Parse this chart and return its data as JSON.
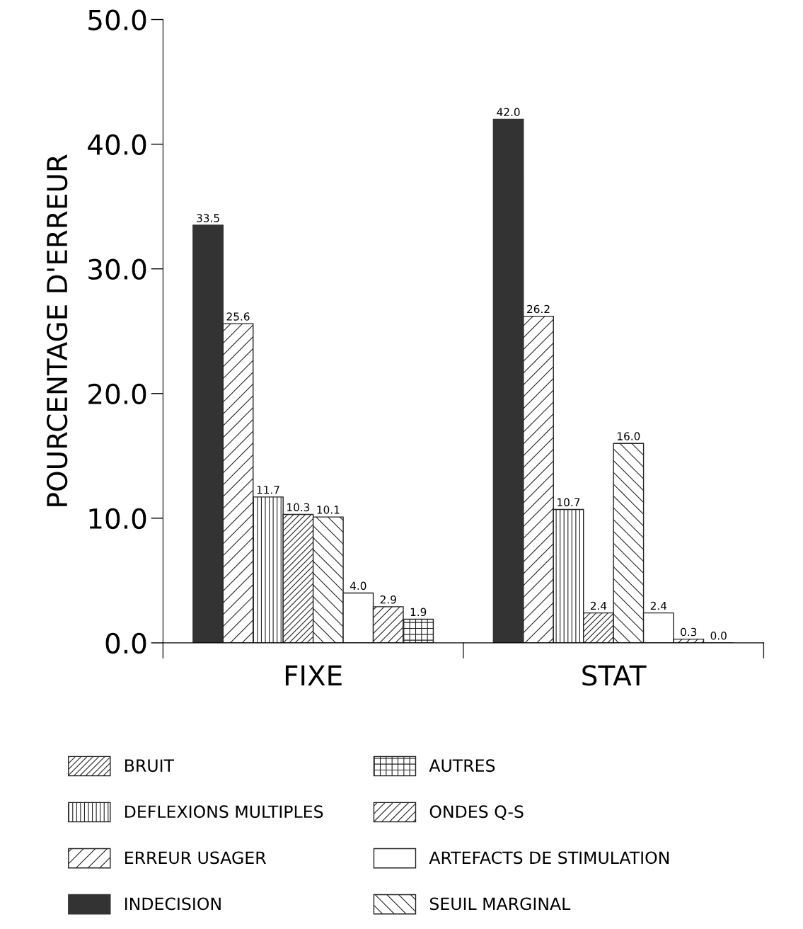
{
  "chart_data": {
    "type": "bar",
    "ylabel": "POURCENTAGE D'ERREUR",
    "categories": [
      "FIXE",
      "STAT"
    ],
    "series": [
      {
        "name": "INDECISION",
        "color": "#333333",
        "values": [
          33.5,
          42.0
        ],
        "value_labels": [
          "33.5",
          "42.0"
        ]
      },
      {
        "name": "ERREUR USAGER",
        "color": "#222222",
        "values": [
          25.6,
          26.2
        ],
        "value_labels": [
          "25.6",
          "26.2"
        ]
      },
      {
        "name": "DEFLEXIONS MULTIPLES",
        "color": "#222222",
        "values": [
          11.7,
          10.7
        ],
        "value_labels": [
          "11.7",
          "10.7"
        ]
      },
      {
        "name": "BRUIT",
        "color": "#222222",
        "values": [
          10.3,
          2.4
        ],
        "value_labels": [
          "10.3",
          "2.4"
        ]
      },
      {
        "name": "SEUIL MARGINAL",
        "color": "#222222",
        "values": [
          10.1,
          16.0
        ],
        "value_labels": [
          "10.1",
          "16.0"
        ]
      },
      {
        "name": "ARTEFACTS DE STIMULATION",
        "color": "#222222",
        "values": [
          4.0,
          2.4
        ],
        "value_labels": [
          "4.0",
          "2.4"
        ]
      },
      {
        "name": "ONDES Q-S",
        "color": "#222222",
        "values": [
          2.9,
          0.3
        ],
        "value_labels": [
          "2.9",
          "0.3"
        ]
      },
      {
        "name": "AUTRES",
        "color": "#222222",
        "values": [
          1.9,
          0.0
        ],
        "value_labels": [
          "1.9",
          "0.0"
        ]
      }
    ],
    "ylim": [
      0,
      50
    ],
    "yticks": [
      {
        "value": 0,
        "label": "0.0"
      },
      {
        "value": 10,
        "label": "10.0"
      },
      {
        "value": 20,
        "label": "20.0"
      },
      {
        "value": 30,
        "label": "30.0"
      },
      {
        "value": 40,
        "label": "40.0"
      },
      {
        "value": 50,
        "label": "50.0"
      }
    ],
    "legend": "bottom",
    "grid": false
  }
}
